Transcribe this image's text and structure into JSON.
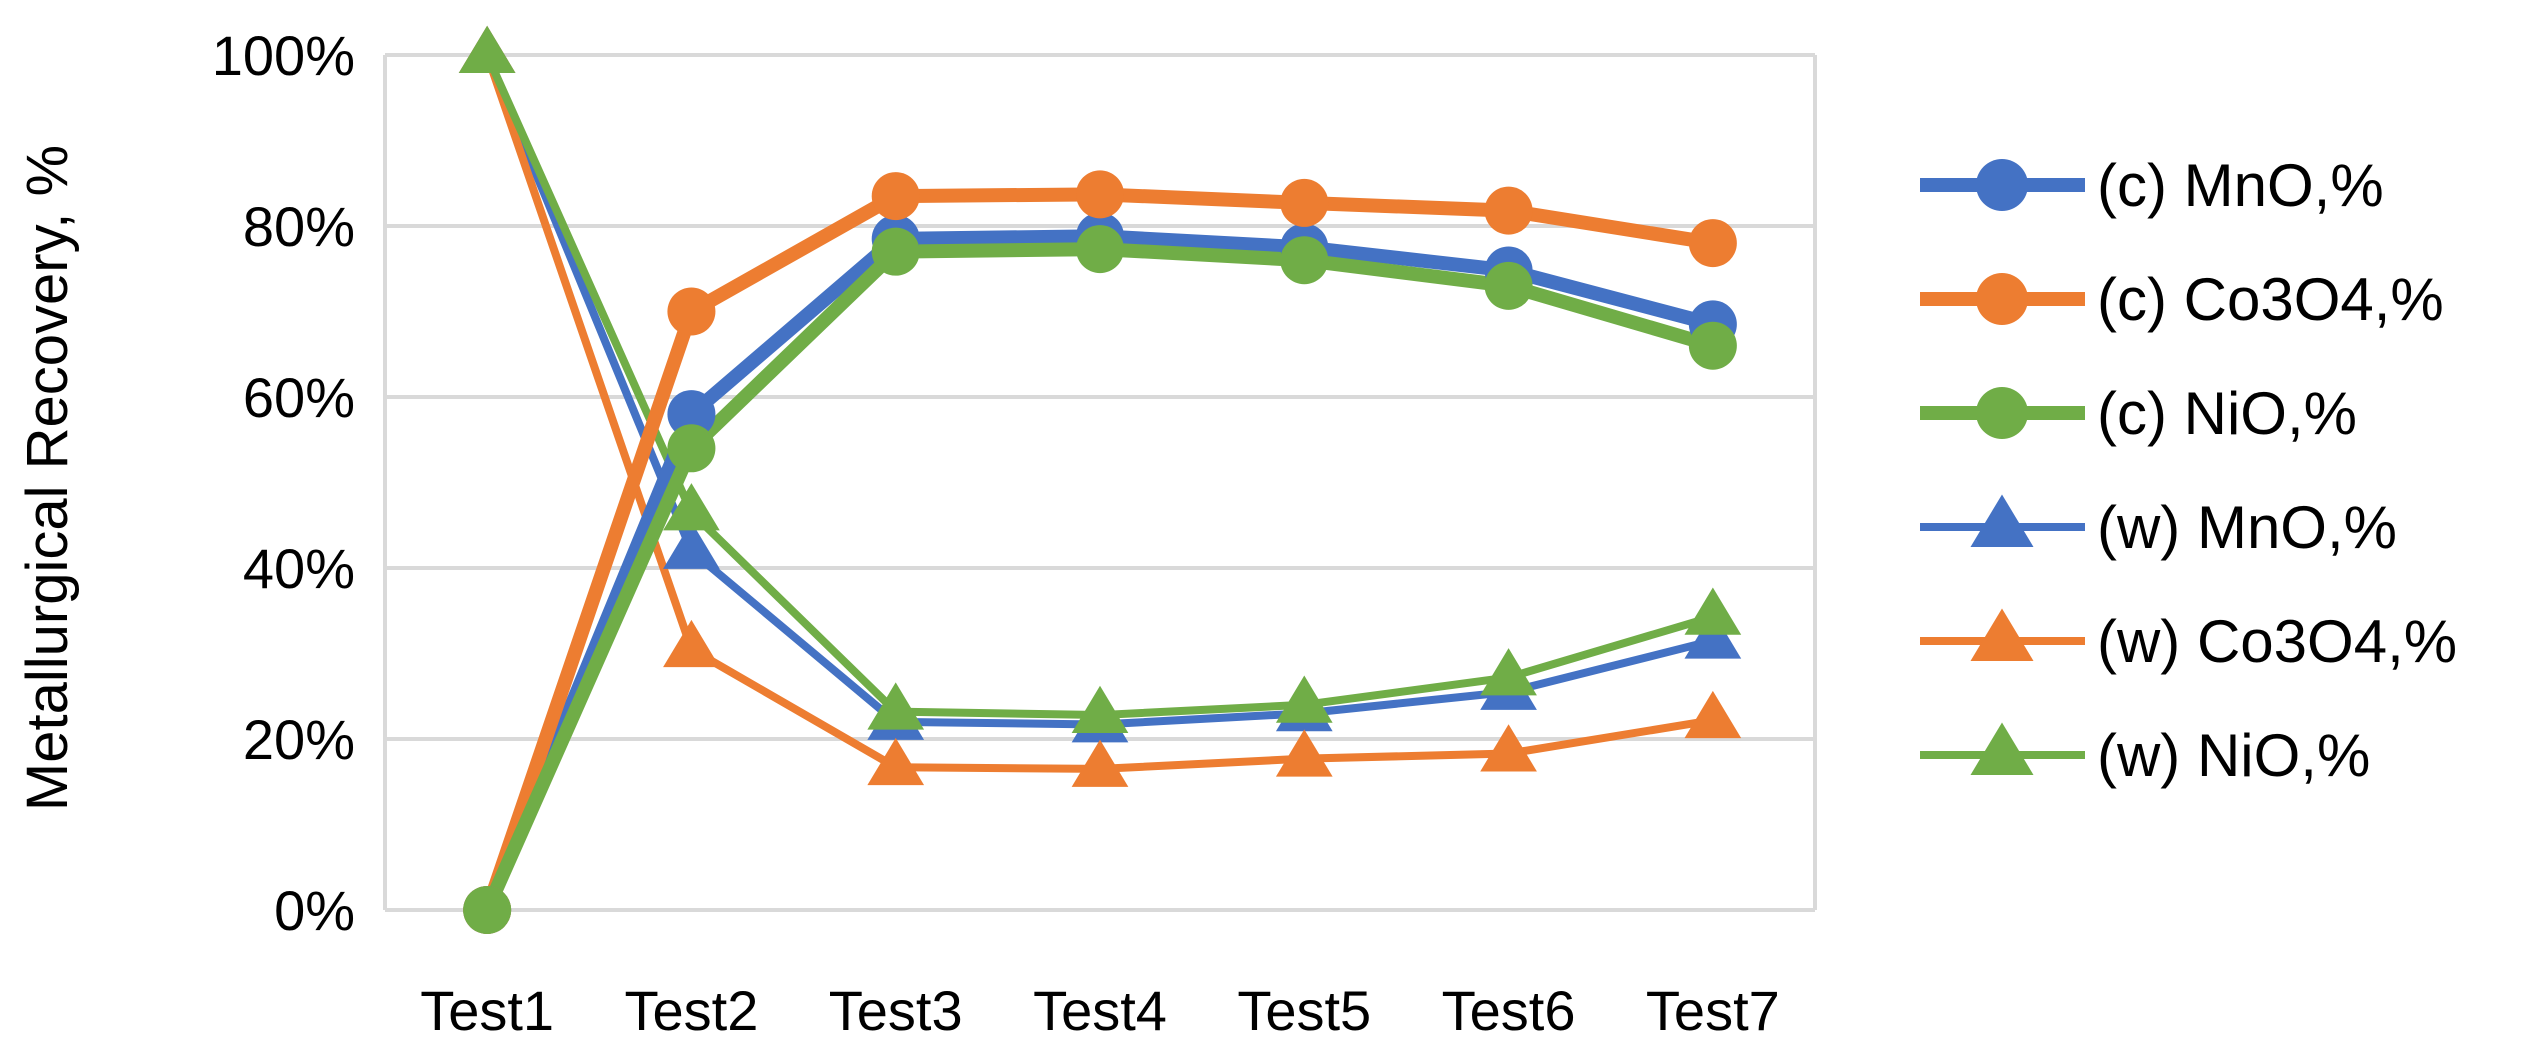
{
  "chart_data": {
    "type": "line",
    "title": "",
    "xlabel": "",
    "ylabel": "Metallurgical Recovery, %",
    "categories": [
      "Test1",
      "Test2",
      "Test3",
      "Test4",
      "Test5",
      "Test6",
      "Test7"
    ],
    "ylim": [
      0,
      100
    ],
    "yticks": [
      "0%",
      "20%",
      "40%",
      "60%",
      "80%",
      "100%"
    ],
    "grid": true,
    "legend_position": "right",
    "series": [
      {
        "name": "(c) MnO,%",
        "marker": "circle",
        "color": "#4472C4",
        "weight": "thick",
        "values": [
          0,
          58,
          78.5,
          78.8,
          77.5,
          74.8,
          68.5
        ]
      },
      {
        "name": "(c) Co3O4,%",
        "marker": "circle",
        "color": "#ED7D31",
        "weight": "thick",
        "values": [
          0,
          70,
          83.5,
          83.7,
          82.7,
          81.8,
          78
        ]
      },
      {
        "name": "(c) NiO,%",
        "marker": "circle",
        "color": "#70AD47",
        "weight": "thick",
        "values": [
          0,
          54,
          77,
          77.3,
          76,
          73,
          66
        ]
      },
      {
        "name": "(w) MnO,%",
        "marker": "triangle",
        "color": "#4472C4",
        "weight": "thin",
        "values": [
          100,
          42,
          22,
          21.7,
          23,
          25.5,
          31.5
        ]
      },
      {
        "name": "(w) Co3O4,%",
        "marker": "triangle",
        "color": "#ED7D31",
        "weight": "thin",
        "values": [
          100,
          30.5,
          16.7,
          16.5,
          17.7,
          18.3,
          22.2
        ]
      },
      {
        "name": "(w) NiO,%",
        "marker": "triangle",
        "color": "#70AD47",
        "weight": "thin",
        "values": [
          100,
          46.5,
          23.2,
          22.8,
          24,
          27.2,
          34.3
        ]
      }
    ]
  }
}
